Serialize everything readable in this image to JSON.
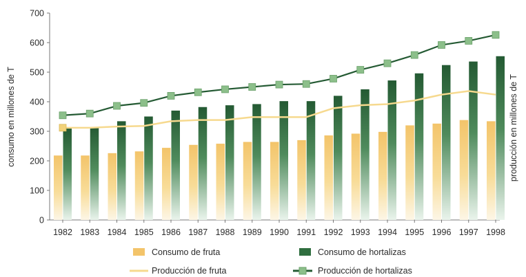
{
  "chart_data": {
    "type": "bar",
    "categories": [
      "1982",
      "1983",
      "1984",
      "1985",
      "1986",
      "1987",
      "1988",
      "1989",
      "1990",
      "1991",
      "1992",
      "1993",
      "1994",
      "1995",
      "1996",
      "1997",
      "1998"
    ],
    "ylabel": "consumo en millones de T",
    "y2label": "producción en millones de T",
    "ylim": [
      0,
      700
    ],
    "yticks": [
      0,
      100,
      200,
      300,
      400,
      500,
      600,
      700
    ],
    "series": [
      {
        "name": "Consumo de fruta",
        "kind": "bar",
        "color": "#f3c46a",
        "values": [
          218,
          218,
          226,
          232,
          244,
          254,
          258,
          264,
          264,
          270,
          286,
          292,
          298,
          320,
          326,
          338,
          334
        ]
      },
      {
        "name": "Consumo de hortalizas",
        "kind": "bar",
        "color": "#2f6e3f",
        "values": [
          310,
          314,
          334,
          350,
          370,
          382,
          388,
          392,
          402,
          402,
          420,
          442,
          472,
          496,
          524,
          536,
          554
        ]
      },
      {
        "name": "Producción de fruta",
        "kind": "line",
        "color": "#f6d98e",
        "values": [
          312,
          312,
          316,
          318,
          334,
          338,
          338,
          348,
          348,
          348,
          378,
          388,
          392,
          404,
          424,
          436,
          424
        ]
      },
      {
        "name": "Producción de hortalizas",
        "kind": "line",
        "color": "#245a33",
        "marker_color": "#8cbf8a",
        "values": [
          354,
          360,
          386,
          396,
          420,
          432,
          442,
          450,
          458,
          460,
          478,
          508,
          530,
          558,
          592,
          606,
          626
        ]
      }
    ],
    "grid": false,
    "legend_position": "bottom"
  }
}
